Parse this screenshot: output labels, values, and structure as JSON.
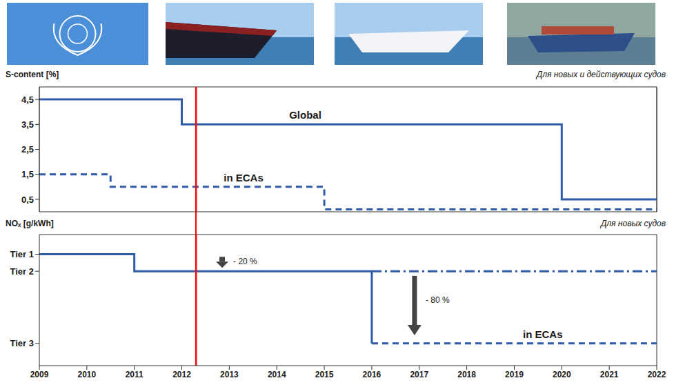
{
  "chart_data": [
    {
      "type": "step",
      "y_label": "S-content [%]",
      "subtitle": "Для новых и действующих судов",
      "xlim": [
        2009,
        2022
      ],
      "xticks": [
        2009,
        2010,
        2011,
        2012,
        2013,
        2014,
        2015,
        2016,
        2017,
        2018,
        2019,
        2020,
        2021,
        2022
      ],
      "ylim": [
        0,
        5
      ],
      "yticks": [
        {
          "value": 0.5,
          "label": "0,5"
        },
        {
          "value": 1.5,
          "label": "1,5"
        },
        {
          "value": 2.5,
          "label": "2,5"
        },
        {
          "value": 3.5,
          "label": "3,5"
        },
        {
          "value": 4.5,
          "label": "4,5"
        }
      ],
      "grid": true,
      "tick_labels": "y",
      "vertical_line": {
        "x": 2012.3,
        "color": "#ff0000"
      },
      "series": [
        {
          "name": "Global",
          "color": "#2f5aa8",
          "line_style": "solid",
          "x": [
            2009,
            2012,
            2020,
            2022
          ],
          "values": [
            4.5,
            3.5,
            0.5,
            0.5
          ]
        },
        {
          "name": "in ECAs",
          "color": "#2f5aa8",
          "line_style": "dashed",
          "x": [
            2009,
            2010.5,
            2015,
            2022
          ],
          "values": [
            1.5,
            1.0,
            0.1,
            0.1
          ]
        }
      ]
    },
    {
      "type": "step",
      "y_label": "NOₓ [g/kWh]",
      "subtitle": "Для новых судов",
      "xlim": [
        2009,
        2022
      ],
      "xticks": [
        2009,
        2010,
        2011,
        2012,
        2013,
        2014,
        2015,
        2016,
        2017,
        2018,
        2019,
        2020,
        2021,
        2022
      ],
      "ylim": [
        0,
        20
      ],
      "yticks": [
        {
          "value": 3.4,
          "label": "Tier 3"
        },
        {
          "value": 14.4,
          "label": "Tier 2"
        },
        {
          "value": 17,
          "label": "Tier 1"
        }
      ],
      "grid": false,
      "vertical_line": {
        "x": 2012.3,
        "color": "#ff0000"
      },
      "annotations": [
        {
          "text": "- 20 %"
        },
        {
          "text": "- 80 %"
        }
      ],
      "series": [
        {
          "color": "#2f5aa8",
          "line_style": "solid",
          "x": [
            2009,
            2011,
            2016,
            2016
          ],
          "values": [
            17,
            14.4,
            14.4,
            3.4
          ]
        },
        {
          "color": "#2f5aa8",
          "line_style": "dashdot",
          "x": [
            2016,
            2022
          ],
          "values": [
            14.4,
            14.4
          ]
        },
        {
          "name": "in ECAs",
          "color": "#2f5aa8",
          "line_style": "dashed",
          "x": [
            2016,
            2022
          ],
          "values": [
            3.4,
            3.4
          ]
        }
      ]
    }
  ]
}
